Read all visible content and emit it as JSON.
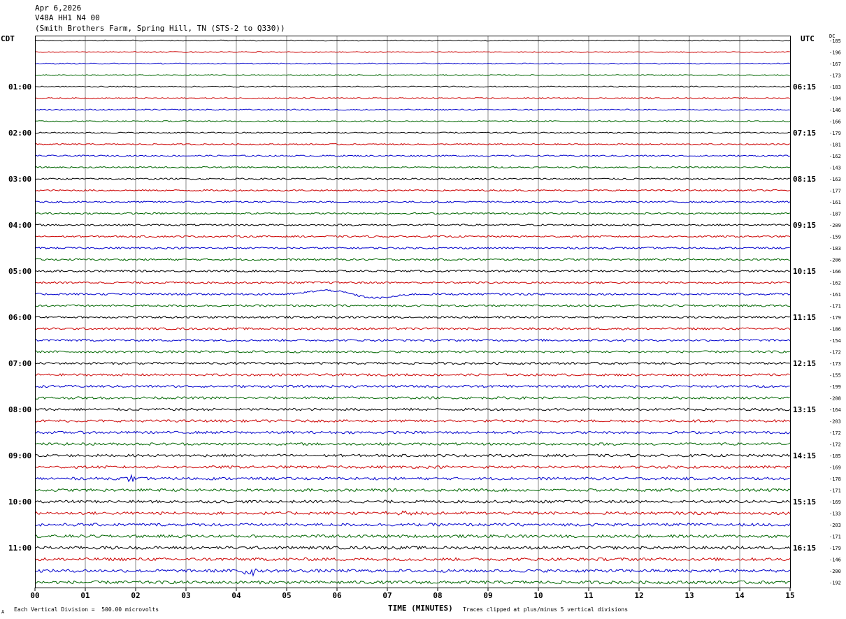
{
  "header": {
    "date": "Apr 6,2026",
    "station": "V48A HH1 N4 00",
    "location": "(Smith Brothers Farm, Spring Hill, TN (STS-2 to Q330))"
  },
  "left_tz": "CDT",
  "right_tz": "UTC",
  "dc_label": "DC",
  "footer": {
    "vertical_division": "Each Vertical Division =  500.00 microvolts",
    "clip_note": "Traces clipped at plus/minus 5 vertical divisions",
    "mark": "A"
  },
  "chart_data": {
    "type": "line",
    "xlabel": "TIME (MINUTES)",
    "xlim": [
      0,
      15
    ],
    "x_ticks": [
      "00",
      "01",
      "02",
      "03",
      "04",
      "05",
      "06",
      "07",
      "08",
      "09",
      "10",
      "11",
      "12",
      "13",
      "14",
      "15"
    ],
    "left_hour_labels": [
      "01:00",
      "02:00",
      "03:00",
      "04:00",
      "05:00",
      "06:00",
      "07:00",
      "08:00",
      "09:00",
      "10:00",
      "11:00"
    ],
    "right_hour_labels": [
      "06:15",
      "07:15",
      "08:15",
      "09:15",
      "10:15",
      "11:15",
      "12:15",
      "13:15",
      "14:15",
      "15:15",
      "16:15"
    ],
    "trace_colors": [
      "#000000",
      "#cc0000",
      "#0000cc",
      "#006600"
    ],
    "dc_offsets": [
      -185,
      -196,
      -167,
      -173,
      -183,
      -194,
      -146,
      -166,
      -179,
      -181,
      -162,
      -143,
      -163,
      -177,
      -161,
      -187,
      -209,
      -159,
      -183,
      -206,
      -166,
      -162,
      -161,
      -171,
      -179,
      -186,
      -154,
      -172,
      -173,
      -155,
      -199,
      -208,
      -164,
      -203,
      -172,
      -172,
      -185,
      -169,
      -178,
      -171,
      -169,
      -133,
      -203,
      -171,
      -179,
      -146,
      -200,
      -192
    ],
    "events": [
      {
        "trace": 22,
        "type": "long-period",
        "start_min": 5.0,
        "end_min": 7.6
      },
      {
        "trace": 38,
        "type": "spike",
        "start_min": 1.8,
        "end_min": 2.0
      },
      {
        "trace": 41,
        "type": "burst",
        "start_min": 6.5,
        "end_min": 8.0
      },
      {
        "trace": 46,
        "type": "spike",
        "start_min": 4.0,
        "end_min": 4.5
      }
    ]
  }
}
